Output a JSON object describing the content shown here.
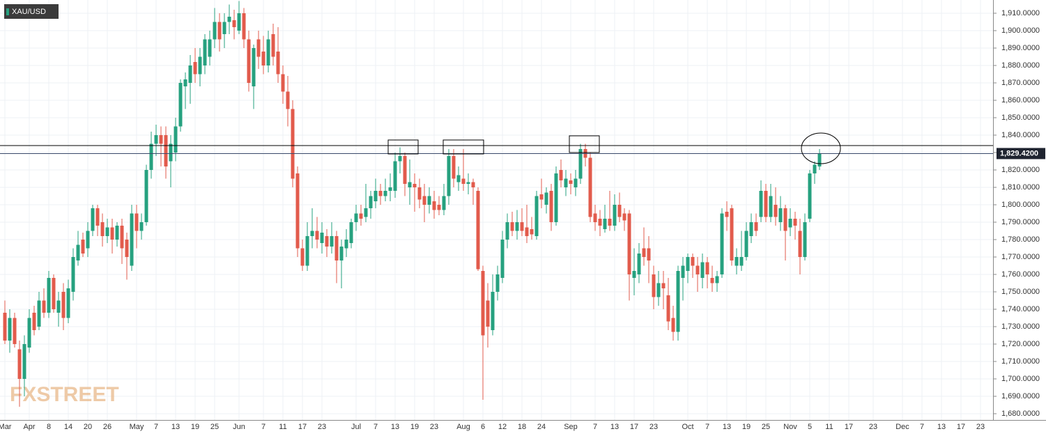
{
  "chart_data": {
    "type": "candlestick",
    "symbol": "XAU/USD",
    "watermark": "FXSTREET",
    "up_color": "#26a17f",
    "down_color": "#e25b4c",
    "grid": true,
    "ylim": [
      1676.4,
      1917.6
    ],
    "yticks": [
      {
        "value": 1680,
        "label": "1,680.0000"
      },
      {
        "value": 1690,
        "label": "1,690.0000"
      },
      {
        "value": 1700,
        "label": "1,700.0000"
      },
      {
        "value": 1710,
        "label": "1,710.0000"
      },
      {
        "value": 1720,
        "label": "1,720.0000"
      },
      {
        "value": 1730,
        "label": "1,730.0000"
      },
      {
        "value": 1740,
        "label": "1,740.0000"
      },
      {
        "value": 1750,
        "label": "1,750.0000"
      },
      {
        "value": 1760,
        "label": "1,760.0000"
      },
      {
        "value": 1770,
        "label": "1,770.0000"
      },
      {
        "value": 1780,
        "label": "1,780.0000"
      },
      {
        "value": 1790,
        "label": "1,790.0000"
      },
      {
        "value": 1800,
        "label": "1,800.0000"
      },
      {
        "value": 1810,
        "label": "1,810.0000"
      },
      {
        "value": 1820,
        "label": "1,820.0000"
      },
      {
        "value": 1830,
        "label": "1,830.0000"
      },
      {
        "value": 1840,
        "label": "1,840.0000"
      },
      {
        "value": 1850,
        "label": "1,850.0000"
      },
      {
        "value": 1860,
        "label": "1,860.0000"
      },
      {
        "value": 1870,
        "label": "1,870.0000"
      },
      {
        "value": 1880,
        "label": "1,880.0000"
      },
      {
        "value": 1890,
        "label": "1,890.0000"
      },
      {
        "value": 1900,
        "label": "1,900.0000"
      },
      {
        "value": 1910,
        "label": "1,910.0000"
      }
    ],
    "last_price": {
      "value": 1829.42,
      "label": "1,829.4200"
    },
    "resistance": 1834,
    "categories": [
      "Mar",
      null,
      null,
      null,
      null,
      "Apr",
      null,
      null,
      null,
      "8",
      null,
      null,
      null,
      "14",
      null,
      null,
      null,
      "20",
      null,
      null,
      null,
      "26",
      null,
      null,
      null,
      null,
      null,
      "May",
      null,
      null,
      null,
      "7",
      null,
      null,
      null,
      "13",
      null,
      null,
      null,
      "19",
      null,
      null,
      null,
      "25",
      null,
      null,
      null,
      null,
      "Jun",
      null,
      null,
      null,
      null,
      "7",
      null,
      null,
      null,
      "11",
      null,
      null,
      null,
      "17",
      null,
      null,
      null,
      "23",
      null,
      null,
      null,
      null,
      null,
      null,
      "Jul",
      null,
      null,
      null,
      "7",
      null,
      null,
      null,
      "13",
      null,
      null,
      null,
      "19",
      null,
      null,
      null,
      "23",
      null,
      null,
      null,
      null,
      null,
      "Aug",
      null,
      null,
      null,
      "6",
      null,
      null,
      null,
      "12",
      null,
      null,
      null,
      "18",
      null,
      null,
      null,
      "24",
      null,
      null,
      null,
      null,
      null,
      "Sep",
      null,
      null,
      null,
      null,
      "7",
      null,
      null,
      null,
      "13",
      null,
      null,
      null,
      "17",
      null,
      null,
      null,
      "23",
      null,
      null,
      null,
      null,
      null,
      null,
      "Oct",
      null,
      null,
      null,
      "7",
      null,
      null,
      null,
      "13",
      null,
      null,
      null,
      "19",
      null,
      null,
      null,
      "25",
      null,
      null,
      null,
      null,
      "Nov",
      null,
      null,
      null,
      "5",
      null,
      null,
      null,
      "11",
      null,
      null,
      null,
      "17",
      null,
      null,
      null,
      null,
      "23",
      null,
      null,
      null,
      null,
      null,
      "Dec",
      null,
      null,
      null,
      "7",
      null,
      null,
      null,
      "13",
      null,
      null,
      null,
      "17",
      null,
      null,
      null,
      "23",
      null
    ],
    "ohlc": [
      [
        1738,
        1745,
        1720,
        1722
      ],
      [
        1722,
        1740,
        1715,
        1735
      ],
      [
        1735,
        1738,
        1718,
        1720
      ],
      [
        1717,
        1722,
        1684,
        1700
      ],
      [
        1700,
        1725,
        1690,
        1720
      ],
      [
        1718,
        1740,
        1715,
        1735
      ],
      [
        1738,
        1742,
        1725,
        1728
      ],
      [
        1730,
        1750,
        1728,
        1745
      ],
      [
        1745,
        1752,
        1735,
        1738
      ],
      [
        1738,
        1762,
        1735,
        1758
      ],
      [
        1758,
        1760,
        1738,
        1740
      ],
      [
        1738,
        1750,
        1730,
        1745
      ],
      [
        1750,
        1755,
        1728,
        1735
      ],
      [
        1735,
        1757,
        1732,
        1752
      ],
      [
        1750,
        1775,
        1745,
        1770
      ],
      [
        1768,
        1785,
        1765,
        1777
      ],
      [
        1780,
        1784,
        1770,
        1772
      ],
      [
        1775,
        1790,
        1770,
        1785
      ],
      [
        1785,
        1800,
        1782,
        1798
      ],
      [
        1798,
        1800,
        1782,
        1788
      ],
      [
        1790,
        1795,
        1776,
        1782
      ],
      [
        1782,
        1792,
        1778,
        1787
      ],
      [
        1787,
        1792,
        1772,
        1780
      ],
      [
        1780,
        1790,
        1776,
        1788
      ],
      [
        1788,
        1792,
        1766,
        1775
      ],
      [
        1780,
        1784,
        1757,
        1770
      ],
      [
        1765,
        1800,
        1762,
        1795
      ],
      [
        1795,
        1800,
        1775,
        1785
      ],
      [
        1785,
        1795,
        1780,
        1790
      ],
      [
        1790,
        1823,
        1788,
        1820
      ],
      [
        1820,
        1842,
        1815,
        1835
      ],
      [
        1835,
        1846,
        1828,
        1840
      ],
      [
        1840,
        1845,
        1822,
        1835
      ],
      [
        1840,
        1845,
        1815,
        1822
      ],
      [
        1825,
        1840,
        1810,
        1835
      ],
      [
        1830,
        1850,
        1825,
        1845
      ],
      [
        1845,
        1872,
        1842,
        1870
      ],
      [
        1868,
        1876,
        1855,
        1872
      ],
      [
        1870,
        1886,
        1858,
        1880
      ],
      [
        1882,
        1890,
        1870,
        1875
      ],
      [
        1875,
        1890,
        1868,
        1885
      ],
      [
        1880,
        1898,
        1875,
        1895
      ],
      [
        1885,
        1900,
        1880,
        1895
      ],
      [
        1895,
        1913,
        1890,
        1905
      ],
      [
        1905,
        1910,
        1888,
        1895
      ],
      [
        1898,
        1910,
        1890,
        1905
      ],
      [
        1905,
        1915,
        1898,
        1908
      ],
      [
        1906,
        1912,
        1895,
        1902
      ],
      [
        1900,
        1917,
        1898,
        1910
      ],
      [
        1910,
        1913,
        1890,
        1895
      ],
      [
        1895,
        1900,
        1865,
        1870
      ],
      [
        1868,
        1892,
        1855,
        1890
      ],
      [
        1895,
        1900,
        1878,
        1885
      ],
      [
        1888,
        1897,
        1875,
        1880
      ],
      [
        1880,
        1900,
        1876,
        1895
      ],
      [
        1898,
        1904,
        1880,
        1885
      ],
      [
        1888,
        1902,
        1870,
        1875
      ],
      [
        1875,
        1880,
        1858,
        1865
      ],
      [
        1865,
        1874,
        1845,
        1855
      ],
      [
        1855,
        1860,
        1810,
        1815
      ],
      [
        1818,
        1822,
        1770,
        1775
      ],
      [
        1775,
        1780,
        1762,
        1765
      ],
      [
        1765,
        1790,
        1762,
        1782
      ],
      [
        1782,
        1798,
        1775,
        1785
      ],
      [
        1785,
        1793,
        1775,
        1780
      ],
      [
        1778,
        1790,
        1772,
        1784
      ],
      [
        1782,
        1786,
        1770,
        1776
      ],
      [
        1776,
        1790,
        1772,
        1782
      ],
      [
        1782,
        1785,
        1755,
        1768
      ],
      [
        1768,
        1780,
        1752,
        1776
      ],
      [
        1775,
        1786,
        1770,
        1780
      ],
      [
        1778,
        1792,
        1775,
        1790
      ],
      [
        1790,
        1800,
        1785,
        1795
      ],
      [
        1795,
        1800,
        1788,
        1792
      ],
      [
        1793,
        1812,
        1790,
        1798
      ],
      [
        1798,
        1808,
        1792,
        1805
      ],
      [
        1802,
        1815,
        1798,
        1808
      ],
      [
        1808,
        1812,
        1800,
        1805
      ],
      [
        1805,
        1815,
        1802,
        1808
      ],
      [
        1808,
        1818,
        1802,
        1810
      ],
      [
        1808,
        1830,
        1804,
        1825
      ],
      [
        1825,
        1833,
        1818,
        1828
      ],
      [
        1828,
        1830,
        1805,
        1812
      ],
      [
        1810,
        1826,
        1800,
        1813
      ],
      [
        1812,
        1818,
        1796,
        1810
      ],
      [
        1810,
        1815,
        1798,
        1803
      ],
      [
        1805,
        1812,
        1790,
        1800
      ],
      [
        1800,
        1810,
        1795,
        1805
      ],
      [
        1802,
        1808,
        1792,
        1797
      ],
      [
        1800,
        1805,
        1794,
        1797
      ],
      [
        1797,
        1812,
        1794,
        1805
      ],
      [
        1805,
        1832,
        1800,
        1828
      ],
      [
        1828,
        1832,
        1810,
        1815
      ],
      [
        1813,
        1822,
        1808,
        1817
      ],
      [
        1815,
        1832,
        1808,
        1812
      ],
      [
        1812,
        1818,
        1806,
        1813
      ],
      [
        1813,
        1815,
        1800,
        1810
      ],
      [
        1808,
        1810,
        1762,
        1763
      ],
      [
        1762,
        1765,
        1688,
        1725
      ],
      [
        1745,
        1755,
        1718,
        1730
      ],
      [
        1728,
        1760,
        1725,
        1750
      ],
      [
        1750,
        1765,
        1745,
        1760
      ],
      [
        1758,
        1785,
        1755,
        1780
      ],
      [
        1780,
        1795,
        1775,
        1790
      ],
      [
        1790,
        1796,
        1782,
        1785
      ],
      [
        1785,
        1797,
        1780,
        1790
      ],
      [
        1790,
        1798,
        1782,
        1785
      ],
      [
        1787,
        1800,
        1778,
        1782
      ],
      [
        1786,
        1793,
        1780,
        1783
      ],
      [
        1782,
        1808,
        1780,
        1805
      ],
      [
        1806,
        1815,
        1798,
        1803
      ],
      [
        1800,
        1810,
        1795,
        1807
      ],
      [
        1808,
        1812,
        1785,
        1790
      ],
      [
        1790,
        1822,
        1788,
        1818
      ],
      [
        1820,
        1826,
        1810,
        1814
      ],
      [
        1810,
        1820,
        1805,
        1815
      ],
      [
        1814,
        1818,
        1806,
        1812
      ],
      [
        1810,
        1820,
        1805,
        1815
      ],
      [
        1815,
        1835,
        1812,
        1832
      ],
      [
        1832,
        1835,
        1822,
        1827
      ],
      [
        1827,
        1830,
        1790,
        1793
      ],
      [
        1795,
        1800,
        1785,
        1790
      ],
      [
        1792,
        1797,
        1782,
        1788
      ],
      [
        1786,
        1800,
        1784,
        1792
      ],
      [
        1792,
        1808,
        1785,
        1788
      ],
      [
        1788,
        1806,
        1785,
        1800
      ],
      [
        1800,
        1807,
        1790,
        1793
      ],
      [
        1795,
        1798,
        1785,
        1791
      ],
      [
        1795,
        1797,
        1745,
        1760
      ],
      [
        1758,
        1775,
        1748,
        1762
      ],
      [
        1760,
        1778,
        1755,
        1772
      ],
      [
        1775,
        1787,
        1765,
        1770
      ],
      [
        1775,
        1782,
        1755,
        1768
      ],
      [
        1760,
        1765,
        1740,
        1747
      ],
      [
        1747,
        1762,
        1742,
        1755
      ],
      [
        1755,
        1762,
        1740,
        1752
      ],
      [
        1748,
        1758,
        1728,
        1733
      ],
      [
        1735,
        1742,
        1722,
        1727
      ],
      [
        1727,
        1765,
        1722,
        1762
      ],
      [
        1758,
        1770,
        1745,
        1765
      ],
      [
        1762,
        1772,
        1755,
        1770
      ],
      [
        1770,
        1772,
        1758,
        1765
      ],
      [
        1765,
        1770,
        1750,
        1760
      ],
      [
        1758,
        1772,
        1752,
        1767
      ],
      [
        1767,
        1770,
        1752,
        1760
      ],
      [
        1758,
        1765,
        1750,
        1755
      ],
      [
        1755,
        1762,
        1750,
        1759
      ],
      [
        1760,
        1798,
        1758,
        1795
      ],
      [
        1796,
        1802,
        1785,
        1793
      ],
      [
        1798,
        1800,
        1765,
        1768
      ],
      [
        1765,
        1775,
        1760,
        1770
      ],
      [
        1765,
        1785,
        1762,
        1770
      ],
      [
        1770,
        1790,
        1768,
        1785
      ],
      [
        1782,
        1795,
        1778,
        1790
      ],
      [
        1790,
        1795,
        1782,
        1785
      ],
      [
        1793,
        1814,
        1790,
        1808
      ],
      [
        1808,
        1812,
        1790,
        1793
      ],
      [
        1793,
        1812,
        1790,
        1805
      ],
      [
        1800,
        1810,
        1788,
        1793
      ],
      [
        1790,
        1805,
        1785,
        1798
      ],
      [
        1798,
        1800,
        1768,
        1785
      ],
      [
        1787,
        1798,
        1782,
        1792
      ],
      [
        1792,
        1796,
        1780,
        1788
      ],
      [
        1785,
        1792,
        1760,
        1770
      ],
      [
        1770,
        1795,
        1768,
        1790
      ],
      [
        1792,
        1820,
        1790,
        1818
      ],
      [
        1818,
        1825,
        1812,
        1823
      ],
      [
        1822,
        1832,
        1820,
        1829.42
      ],
      null,
      null,
      null,
      null,
      null,
      null,
      null,
      null,
      null,
      null,
      null,
      null,
      null,
      null,
      null,
      null,
      null,
      null,
      null,
      null,
      null,
      null,
      null,
      null,
      null,
      null,
      null,
      null,
      null,
      null,
      null,
      null,
      null,
      null
    ]
  }
}
